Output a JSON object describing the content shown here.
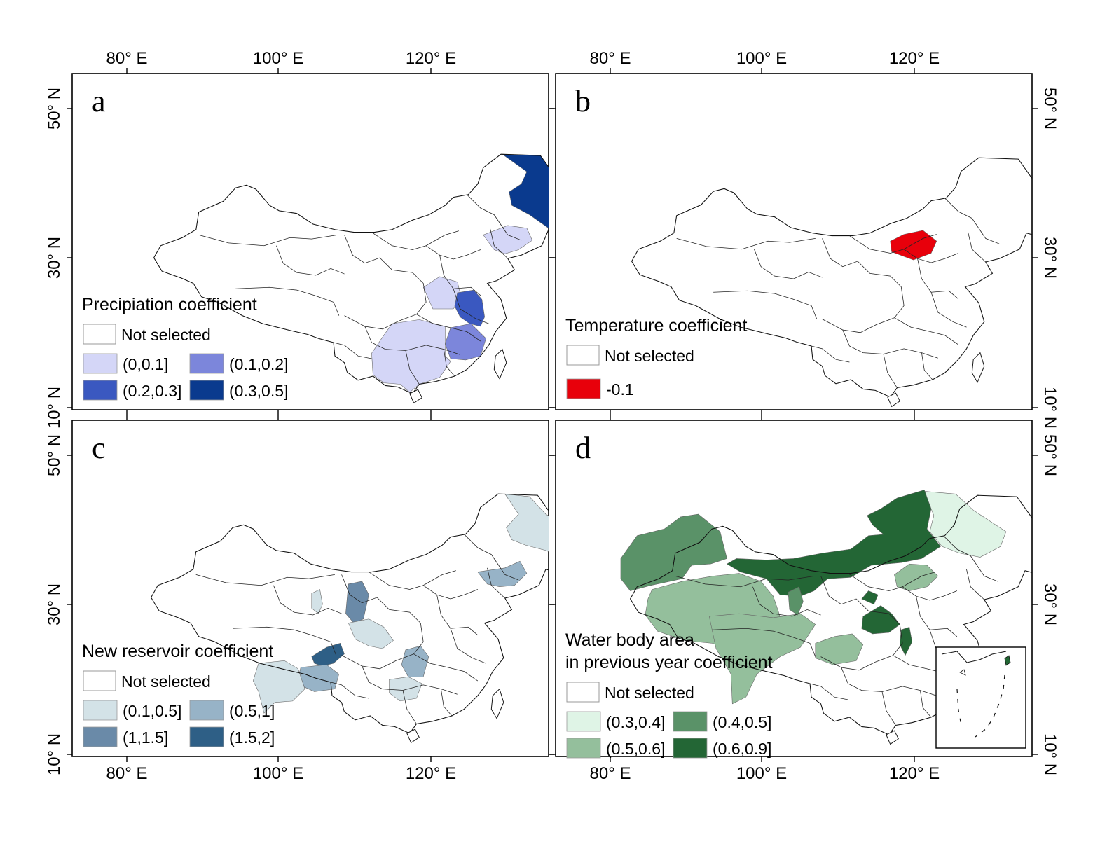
{
  "axes": {
    "lon": [
      "80° E",
      "100° E",
      "120° E"
    ],
    "lat": [
      "50° N",
      "30° N",
      "10° N"
    ]
  },
  "panels": [
    {
      "id": "a",
      "letter": "a",
      "legend_title": [
        "Precipiation coefficient"
      ],
      "not_selected": "Not selected",
      "classes": [
        {
          "label": "(0,0.1]",
          "color": "#d4d6f7"
        },
        {
          "label": "(0.1,0.2]",
          "color": "#7c86db"
        },
        {
          "label": "(0.2,0.3]",
          "color": "#3a58c0"
        },
        {
          "label": "(0.3,0.5]",
          "color": "#0a3a8e"
        }
      ]
    },
    {
      "id": "b",
      "letter": "b",
      "legend_title": [
        "Temperature coefficient"
      ],
      "not_selected": "Not selected",
      "classes": [
        {
          "label": "-0.1",
          "color": "#e8000b"
        }
      ]
    },
    {
      "id": "c",
      "letter": "c",
      "legend_title": [
        "New reservoir coefficient"
      ],
      "not_selected": "Not selected",
      "classes": [
        {
          "label": "(0.1,0.5]",
          "color": "#d3e2e7"
        },
        {
          "label": "(0.5,1]",
          "color": "#97b3c7"
        },
        {
          "label": "(1,1.5]",
          "color": "#6a8aa8"
        },
        {
          "label": "(1.5,2]",
          "color": "#2e5f86"
        }
      ]
    },
    {
      "id": "d",
      "letter": "d",
      "legend_title": [
        "Water body area",
        "in previous year coefficient"
      ],
      "not_selected": "Not selected",
      "classes": [
        {
          "label": "(0.3,0.4]",
          "color": "#dff4e6"
        },
        {
          "label": "(0.4,0.5]",
          "color": "#5a9268"
        },
        {
          "label": "(0.5,0.6]",
          "color": "#94bf9c"
        },
        {
          "label": "(0.6,0.9]",
          "color": "#236635"
        }
      ]
    }
  ]
}
